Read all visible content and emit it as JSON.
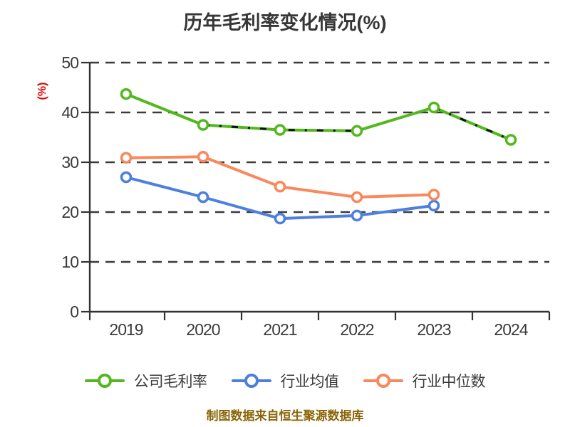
{
  "title": "历年毛利率变化情况(%)",
  "footer": "制图数据来自恒生聚源数据库",
  "colors": {
    "company": "#53b81e",
    "industry_avg": "#4d7fdd",
    "industry_median": "#f9885c",
    "axis": "#333333",
    "grid": "#3b3b3b",
    "tick_text": "#3a3a3a",
    "ylabel_red": "#e60000",
    "overlay_dash": "#111111",
    "footer_text": "#8B6508",
    "background": "#ffffff"
  },
  "chart_data": {
    "type": "line",
    "title": "历年毛利率变化情况(%)",
    "categories": [
      "2019",
      "2020",
      "2021",
      "2022",
      "2023",
      "2024"
    ],
    "series": [
      {
        "name": "公司毛利率",
        "color": "#53b81e",
        "values": [
          43.7,
          37.5,
          36.5,
          36.3,
          41.0,
          34.5
        ],
        "marker": "circle-white-fill",
        "overlay_dash_ranges": [
          [
            1,
            3
          ],
          [
            4,
            5
          ]
        ]
      },
      {
        "name": "行业均值",
        "color": "#4d7fdd",
        "values": [
          27.0,
          23.0,
          18.7,
          19.3,
          21.3,
          null
        ],
        "marker": "circle-white-fill"
      },
      {
        "name": "行业中位数",
        "color": "#f9885c",
        "values": [
          30.9,
          31.1,
          25.1,
          23.0,
          23.5,
          null
        ],
        "marker": "circle-white-fill"
      }
    ],
    "xlabel": "",
    "ylabel": "(%)",
    "ylim": [
      0,
      50
    ],
    "yticks": [
      0,
      10,
      20,
      30,
      40,
      50
    ],
    "grid": true,
    "grid_style": "dashed",
    "legend_position": "bottom"
  }
}
